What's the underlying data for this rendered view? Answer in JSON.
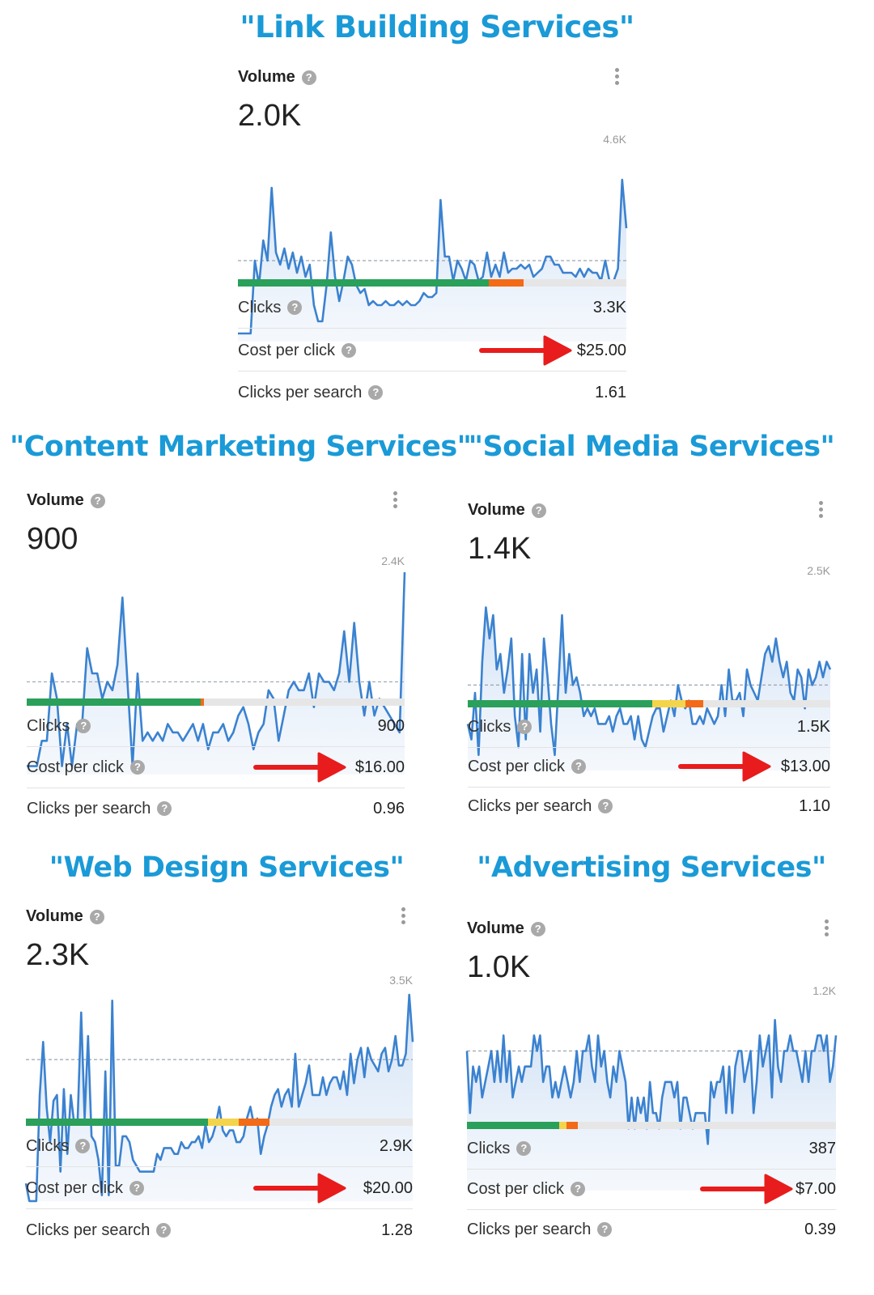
{
  "colors": {
    "title": "#1a9ad7",
    "line": "#3b82d0",
    "arrow": "#e81c1c",
    "bar_green": "#2aa05a",
    "bar_yellow": "#f4d44a",
    "bar_orange": "#f36a17",
    "bar_bg": "#e6e6e6"
  },
  "icons": {
    "help": "question-circle-icon",
    "menu": "kebab-menu-icon",
    "pointer": "red-arrow-icon"
  },
  "labels": {
    "volume": "Volume",
    "clicks": "Clicks",
    "cpc": "Cost per click",
    "cps": "Clicks per search",
    "help_glyph": "?"
  },
  "cards": [
    {
      "title": "\"Link Building Services\"",
      "volume": "2.0K",
      "max_label": "4.6K",
      "clicks": "3.3K",
      "cpc": "$25.00",
      "cps": "1.61",
      "difficulty": {
        "green": 0.645,
        "yellow": 0.0,
        "orange": 0.09
      }
    },
    {
      "title": "\"Content Marketing Services\"",
      "volume": "900",
      "max_label": "2.4K",
      "clicks": "900",
      "cpc": "$16.00",
      "cps": "0.96",
      "difficulty": {
        "green": 0.46,
        "yellow": 0.0,
        "orange": 0.01
      }
    },
    {
      "title": "\"Social Media Services\"",
      "volume": "1.4K",
      "max_label": "2.5K",
      "clicks": "1.5K",
      "cpc": "$13.00",
      "cps": "1.10",
      "difficulty": {
        "green": 0.51,
        "yellow": 0.09,
        "orange": 0.05
      }
    },
    {
      "title": "\"Web Design Services\"",
      "volume": "2.3K",
      "max_label": "3.5K",
      "clicks": "2.9K",
      "cpc": "$20.00",
      "cps": "1.28",
      "difficulty": {
        "green": 0.47,
        "yellow": 0.08,
        "orange": 0.08
      }
    },
    {
      "title": "\"Advertising Services\"",
      "volume": "1.0K",
      "max_label": "1.2K",
      "clicks": "387",
      "cpc": "$7.00",
      "cps": "0.39",
      "difficulty": {
        "green": 0.25,
        "yellow": 0.02,
        "orange": 0.03
      }
    }
  ],
  "chart_data": [
    {
      "type": "line",
      "title": "\"Link Building Services\"",
      "ylim": [
        0,
        4600
      ],
      "reference": 2000,
      "values": [
        200,
        200,
        200,
        200,
        2000,
        1400,
        2500,
        2000,
        3800,
        2200,
        1900,
        2300,
        1800,
        2200,
        1700,
        2100,
        1600,
        1900,
        900,
        500,
        500,
        1400,
        2700,
        1600,
        1000,
        1500,
        2100,
        1900,
        1400,
        1200,
        1300,
        900,
        1000,
        900,
        900,
        1000,
        900,
        900,
        1000,
        900,
        1000,
        900,
        900,
        1000,
        1200,
        1100,
        1100,
        1200,
        3500,
        2100,
        2100,
        1500,
        2000,
        1800,
        1500,
        2000,
        1900,
        1500,
        1600,
        2200,
        1600,
        1900,
        1600,
        2200,
        1700,
        1800,
        1800,
        1900,
        1800,
        1900,
        1600,
        1700,
        1800,
        2100,
        2100,
        1900,
        1900,
        1700,
        1700,
        1700,
        1600,
        1800,
        1600,
        1800,
        1700,
        1700,
        1500,
        2000,
        1500,
        1500,
        1800,
        4000,
        2800
      ]
    },
    {
      "type": "line",
      "title": "\"Content Marketing Services\"",
      "ylim": [
        0,
        2400
      ],
      "reference": 1100,
      "values": [
        100,
        100,
        100,
        400,
        400,
        1200,
        900,
        100,
        600,
        100,
        600,
        600,
        1500,
        1200,
        1200,
        900,
        1100,
        1000,
        1300,
        2100,
        1100,
        100,
        1200,
        400,
        500,
        400,
        500,
        400,
        600,
        500,
        500,
        400,
        500,
        600,
        400,
        600,
        300,
        500,
        500,
        600,
        400,
        500,
        700,
        800,
        600,
        300,
        500,
        600,
        1000,
        900,
        400,
        700,
        1000,
        1100,
        1000,
        1000,
        1200,
        800,
        1200,
        1100,
        1100,
        1000,
        1200,
        1700,
        1100,
        1800,
        1100,
        700,
        1100,
        700,
        900,
        800,
        700,
        600,
        500,
        2400
      ]
    },
    {
      "type": "line",
      "title": "\"Social Media Services\"",
      "ylim": [
        0,
        2500
      ],
      "reference": 1100,
      "values": [
        600,
        400,
        1000,
        200,
        1400,
        2100,
        1700,
        2000,
        1300,
        1500,
        1000,
        1300,
        1700,
        700,
        300,
        1500,
        400,
        1500,
        1000,
        1300,
        500,
        1700,
        1200,
        600,
        200,
        1100,
        2000,
        1000,
        1500,
        1100,
        1200,
        1000,
        700,
        800,
        700,
        800,
        600,
        600,
        600,
        700,
        500,
        700,
        800,
        600,
        600,
        700,
        400,
        700,
        400,
        300,
        500,
        700,
        800,
        800,
        500,
        700,
        900,
        700,
        1100,
        900,
        800,
        900,
        600,
        600,
        700,
        600,
        800,
        700,
        600,
        700,
        1100,
        700,
        1300,
        900,
        900,
        1000,
        700,
        1300,
        1100,
        1000,
        900,
        1200,
        1500,
        1600,
        1400,
        1700,
        1400,
        1200,
        1400,
        1000,
        900,
        1300,
        1200,
        800,
        1300,
        1100,
        1200,
        1400,
        1200,
        1400,
        1300
      ]
    },
    {
      "type": "line",
      "title": "\"Web Design Services\"",
      "ylim": [
        0,
        3500
      ],
      "reference": 2400,
      "values": [
        300,
        0,
        0,
        0,
        1800,
        2700,
        1600,
        1000,
        1700,
        1800,
        500,
        1900,
        800,
        1800,
        1300,
        1400,
        3200,
        1400,
        2800,
        1100,
        1000,
        700,
        100,
        2200,
        100,
        3400,
        600,
        600,
        1100,
        1100,
        1000,
        700,
        600,
        500,
        500,
        500,
        500,
        500,
        800,
        700,
        900,
        900,
        900,
        800,
        800,
        1000,
        900,
        900,
        1000,
        1000,
        1100,
        900,
        1300,
        1000,
        1100,
        1300,
        1600,
        1200,
        1100,
        1200,
        1200,
        1000,
        1000,
        1100,
        1400,
        1600,
        1300,
        1400,
        800,
        1100,
        1300,
        1600,
        1800,
        1900,
        1600,
        1800,
        1900,
        1600,
        2500,
        1600,
        1800,
        2000,
        2300,
        1800,
        1800,
        1800,
        2100,
        1800,
        2000,
        2100,
        2100,
        1900,
        2200,
        1800,
        2500,
        2000,
        2400,
        2600,
        2100,
        2600,
        2400,
        2300,
        2200,
        2500,
        2600,
        2200,
        2400,
        2800,
        2300,
        2300,
        2500,
        3500,
        2700
      ]
    },
    {
      "type": "line",
      "title": "\"Advertising Services\"",
      "ylim": [
        0,
        1200
      ],
      "reference": 900,
      "values": [
        900,
        500,
        800,
        700,
        800,
        600,
        700,
        800,
        900,
        700,
        900,
        700,
        1000,
        700,
        900,
        600,
        700,
        800,
        700,
        800,
        800,
        800,
        1000,
        900,
        1000,
        700,
        800,
        800,
        600,
        700,
        600,
        700,
        800,
        700,
        600,
        700,
        900,
        700,
        900,
        900,
        1000,
        800,
        700,
        1000,
        800,
        900,
        700,
        600,
        800,
        700,
        900,
        800,
        700,
        400,
        600,
        400,
        600,
        500,
        600,
        400,
        700,
        500,
        500,
        400,
        600,
        700,
        700,
        700,
        600,
        700,
        400,
        600,
        600,
        500,
        400,
        500,
        500,
        500,
        500,
        300,
        700,
        600,
        700,
        700,
        800,
        500,
        800,
        500,
        800,
        900,
        900,
        700,
        800,
        900,
        500,
        700,
        1000,
        800,
        900,
        1000,
        600,
        1100,
        800,
        700,
        900,
        900,
        1000,
        900,
        900,
        800,
        700,
        900,
        700,
        900,
        900,
        1000,
        1000,
        900,
        1000,
        700,
        800,
        1000
      ]
    }
  ]
}
